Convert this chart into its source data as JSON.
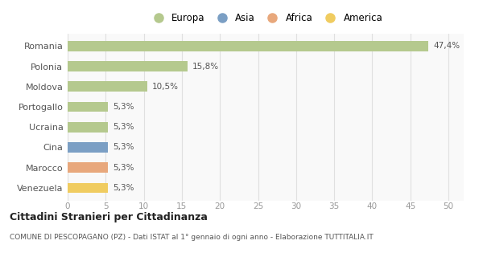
{
  "categories": [
    "Romania",
    "Polonia",
    "Moldova",
    "Portogallo",
    "Ucraina",
    "Cina",
    "Marocco",
    "Venezuela"
  ],
  "values": [
    47.4,
    15.8,
    10.5,
    5.3,
    5.3,
    5.3,
    5.3,
    5.3
  ],
  "labels": [
    "47,4%",
    "15,8%",
    "10,5%",
    "5,3%",
    "5,3%",
    "5,3%",
    "5,3%",
    "5,3%"
  ],
  "colors": [
    "#b5c98e",
    "#b5c98e",
    "#b5c98e",
    "#b5c98e",
    "#b5c98e",
    "#7b9fc4",
    "#e8a87c",
    "#f0cc60"
  ],
  "legend": [
    {
      "label": "Europa",
      "color": "#b5c98e"
    },
    {
      "label": "Asia",
      "color": "#7b9fc4"
    },
    {
      "label": "Africa",
      "color": "#e8a87c"
    },
    {
      "label": "America",
      "color": "#f0cc60"
    }
  ],
  "xlim": [
    0,
    52
  ],
  "xticks": [
    0,
    5,
    10,
    15,
    20,
    25,
    30,
    35,
    40,
    45,
    50
  ],
  "title": "Cittadini Stranieri per Cittadinanza",
  "subtitle": "COMUNE DI PESCOPAGANO (PZ) - Dati ISTAT al 1° gennaio di ogni anno - Elaborazione TUTTITALIA.IT",
  "background_color": "#ffffff",
  "plot_bg_color": "#f9f9f9",
  "grid_color": "#e0e0e0",
  "bar_height": 0.5
}
